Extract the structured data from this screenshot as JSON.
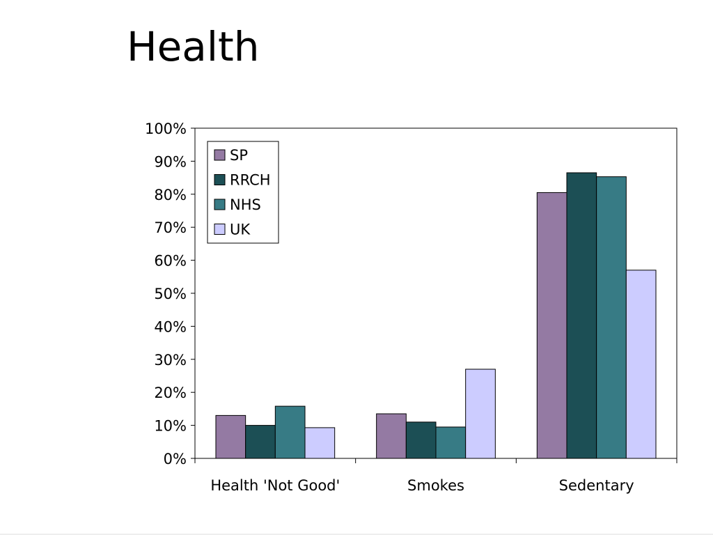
{
  "slide": {
    "title": "Health"
  },
  "chart_data": {
    "type": "bar",
    "title": "",
    "xlabel": "",
    "ylabel": "",
    "categories": [
      "Health 'Not Good'",
      "Smokes",
      "Sedentary"
    ],
    "series": [
      {
        "name": "SP",
        "color": "#947aa3",
        "values": [
          13,
          13.5,
          80.5
        ]
      },
      {
        "name": "RRCH",
        "color": "#1c4f55",
        "values": [
          10,
          11,
          86.5
        ]
      },
      {
        "name": "NHS",
        "color": "#377b85",
        "values": [
          15.8,
          9.5,
          85.3
        ]
      },
      {
        "name": "UK",
        "color": "#ccccff",
        "values": [
          9.3,
          27,
          57
        ]
      }
    ],
    "ylim": [
      0,
      100
    ],
    "yticks": [
      0,
      10,
      20,
      30,
      40,
      50,
      60,
      70,
      80,
      90,
      100
    ],
    "ytick_labels": [
      "0%",
      "10%",
      "20%",
      "30%",
      "40%",
      "50%",
      "60%",
      "70%",
      "80%",
      "90%",
      "100%"
    ],
    "grid": false,
    "legend_position": "top-left"
  }
}
